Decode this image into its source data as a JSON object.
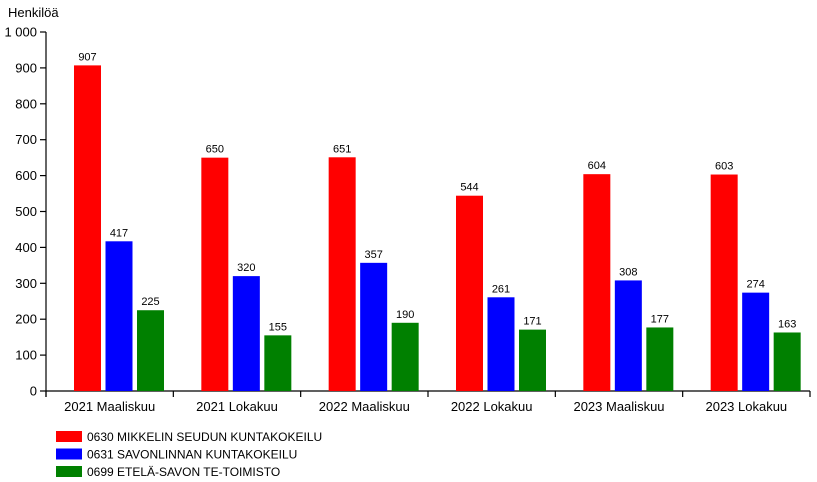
{
  "chart_data": {
    "type": "bar",
    "ylabel": "Henkilöä",
    "ylim": [
      0,
      1000
    ],
    "yticks": [
      0,
      100,
      200,
      300,
      400,
      500,
      600,
      700,
      800,
      900,
      1000
    ],
    "ytick_labels": [
      "0",
      "100",
      "200",
      "300",
      "400",
      "500",
      "600",
      "700",
      "800",
      "900",
      "1 000"
    ],
    "categories": [
      "2021 Maaliskuu",
      "2021 Lokakuu",
      "2022 Maaliskuu",
      "2022 Lokakuu",
      "2023 Maaliskuu",
      "2023 Lokakuu"
    ],
    "grid": false,
    "legend_position": "bottom-left",
    "data_labels": true,
    "series": [
      {
        "name": "0630 MIKKELIN SEUDUN KUNTAKOKEILU",
        "color": "#ff0000",
        "values": [
          907,
          650,
          651,
          544,
          604,
          603
        ]
      },
      {
        "name": "0631 SAVONLINNAN KUNTAKOKEILU",
        "color": "#0000ff",
        "values": [
          417,
          320,
          357,
          261,
          308,
          274
        ]
      },
      {
        "name": "0699 ETELÄ-SAVON TE-TOIMISTO",
        "color": "#008000",
        "values": [
          225,
          155,
          190,
          171,
          177,
          163
        ]
      }
    ]
  }
}
